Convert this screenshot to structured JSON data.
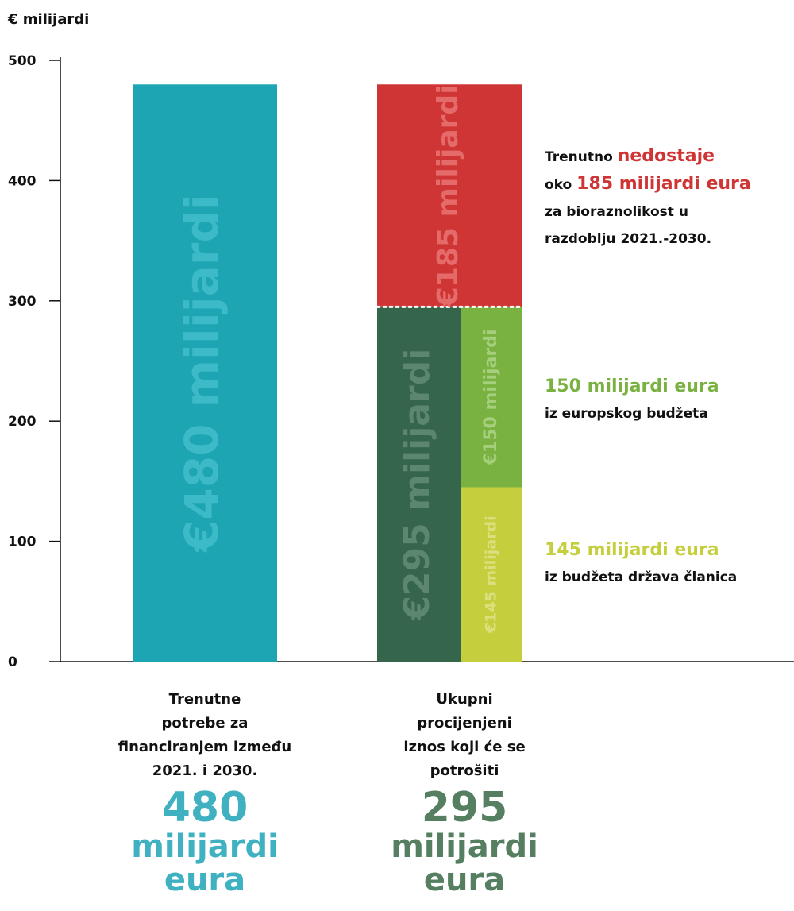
{
  "chart_data": {
    "type": "bar",
    "unit_label": "€ milijardi",
    "ylim": [
      0,
      500
    ],
    "yticks": [
      0,
      100,
      200,
      300,
      400,
      500
    ],
    "bars": [
      {
        "category": "Trenutne potrebe za financiranjem između 2021. i 2030.",
        "stacked": false,
        "segments": [
          {
            "value": 480,
            "label": "€480 milijardi",
            "color": "#1ea5b3"
          }
        ]
      },
      {
        "category": "Ukupni procijenjeni iznos koji će se potrošiti",
        "stacked": true,
        "segments": [
          {
            "value": 295,
            "label": "€295 milijardi",
            "color": "#35654a"
          },
          {
            "value": 185,
            "label": "€185 milijardi",
            "color": "#cf3535"
          }
        ],
        "sub_segments": [
          {
            "value": 145,
            "label": "€145 milijardi",
            "color": "#c5cf3e"
          },
          {
            "value": 150,
            "label": "€150 milijardi",
            "color": "#79b240"
          }
        ]
      }
    ]
  },
  "annotations": {
    "gap": {
      "prefix": "Trenutno ",
      "highlight1": "nedostaje",
      "line2_prefix": "oko ",
      "highlight2": "185 milijardi eura",
      "line3": "za bioraznolikost u",
      "line4": "razdoblju 2021.-2030.",
      "color": "#cf3535"
    },
    "eu": {
      "highlight": "150 milijardi eura",
      "text": "iz europskog budžeta",
      "color": "#79b240"
    },
    "ms": {
      "highlight": "145 milijardi eura",
      "text": "iz budžeta država članica",
      "color": "#c5cf3e"
    }
  },
  "categories": {
    "left": {
      "l1": "Trenutne",
      "l2": "potrebe za",
      "l3": "financiranjem između",
      "l4": "2021. i 2030.",
      "big_num": "480",
      "big_w1": "milijardi",
      "big_w2": "eura",
      "color": "#3fb1c1"
    },
    "right": {
      "l1": "Ukupni",
      "l2": "procijenjeni",
      "l3": "iznos koji će se",
      "l4": "potrošiti",
      "big_num": "295",
      "big_w1": "milijardi",
      "big_w2": "eura",
      "color": "#557f60"
    }
  }
}
